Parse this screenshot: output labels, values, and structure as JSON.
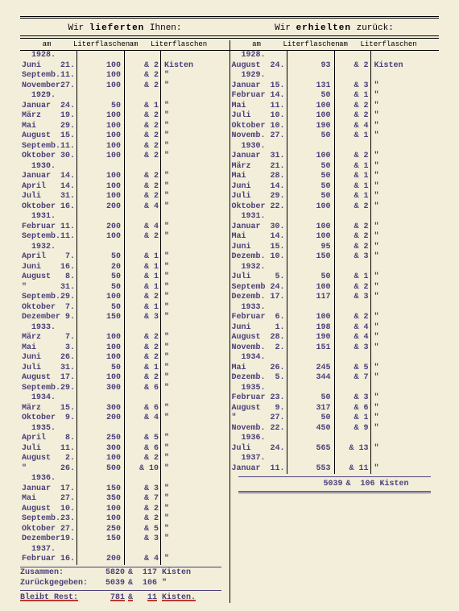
{
  "colors": {
    "paper": "#f2eed9",
    "ink": "#4a3f7a",
    "rule": "#000000",
    "red": "#c0392b"
  },
  "typography": {
    "fontFamily": "Courier New",
    "fontSize": 10
  },
  "headers": {
    "leftTitle": "Wir lieferten Ihnen:",
    "rightTitle": "Wir erhielten zurück:",
    "col_am": "am",
    "col_lf": "Literflaschen"
  },
  "left": [
    {
      "year": "1928."
    },
    {
      "m": "Juni",
      "d": "21.",
      "lf": "100",
      "am2": "& 2",
      "lf2": "Kisten"
    },
    {
      "m": "Septemb.",
      "d": "11.",
      "lf": "100",
      "am2": "& 2",
      "lf2": "\""
    },
    {
      "m": "November",
      "d": "27.",
      "lf": "100",
      "am2": "& 2",
      "lf2": "\""
    },
    {
      "year": "1929."
    },
    {
      "m": "Januar",
      "d": "24.",
      "lf": "50",
      "am2": "& 1",
      "lf2": "\""
    },
    {
      "m": "März",
      "d": "19.",
      "lf": "100",
      "am2": "& 2",
      "lf2": "\""
    },
    {
      "m": "Mai",
      "d": "29.",
      "lf": "100",
      "am2": "& 2",
      "lf2": "\""
    },
    {
      "m": "August",
      "d": "15.",
      "lf": "100",
      "am2": "& 2",
      "lf2": "\""
    },
    {
      "m": "Septemb.",
      "d": "11.",
      "lf": "100",
      "am2": "& 2",
      "lf2": "\""
    },
    {
      "m": "Oktober",
      "d": "30.",
      "lf": "100",
      "am2": "& 2",
      "lf2": "\""
    },
    {
      "year": "1930."
    },
    {
      "m": "Januar",
      "d": "14.",
      "lf": "100",
      "am2": "& 2",
      "lf2": "\""
    },
    {
      "m": "April",
      "d": "14.",
      "lf": "100",
      "am2": "& 2",
      "lf2": "\""
    },
    {
      "m": "Juli",
      "d": "31.",
      "lf": "100",
      "am2": "& 2",
      "lf2": "\""
    },
    {
      "m": "Oktober",
      "d": "16.",
      "lf": "200",
      "am2": "& 4",
      "lf2": "\""
    },
    {
      "year": "1931."
    },
    {
      "m": "Februar",
      "d": "11.",
      "lf": "200",
      "am2": "& 4",
      "lf2": "\""
    },
    {
      "m": "Septemb.",
      "d": "11.",
      "lf": "100",
      "am2": "& 2",
      "lf2": "\""
    },
    {
      "year": "1932."
    },
    {
      "m": "April",
      "d": "7.",
      "lf": "50",
      "am2": "& 1",
      "lf2": "\""
    },
    {
      "m": "Juni",
      "d": "16.",
      "lf": "20",
      "am2": "& 1",
      "lf2": "\""
    },
    {
      "m": "August",
      "d": "8.",
      "lf": "50",
      "am2": "& 1",
      "lf2": "\""
    },
    {
      "m": "\"",
      "d": "31.",
      "lf": "50",
      "am2": "& 1",
      "lf2": "\""
    },
    {
      "m": "Septemb.",
      "d": "29.",
      "lf": "100",
      "am2": "& 2",
      "lf2": "\""
    },
    {
      "m": "Oktober",
      "d": "7.",
      "lf": "50",
      "am2": "& 1",
      "lf2": "\""
    },
    {
      "m": "Dezember",
      "d": "9.",
      "lf": "150",
      "am2": "& 3",
      "lf2": "\""
    },
    {
      "year": "1933."
    },
    {
      "m": "März",
      "d": "7.",
      "lf": "100",
      "am2": "& 2",
      "lf2": "\""
    },
    {
      "m": "Mai",
      "d": "3.",
      "lf": "100",
      "am2": "& 2",
      "lf2": "\""
    },
    {
      "m": "Juni",
      "d": "26.",
      "lf": "100",
      "am2": "& 2",
      "lf2": "\""
    },
    {
      "m": "Juli",
      "d": "31.",
      "lf": "50",
      "am2": "& 1",
      "lf2": "\""
    },
    {
      "m": "August",
      "d": "17.",
      "lf": "100",
      "am2": "& 2",
      "lf2": "\""
    },
    {
      "m": "Septemb.",
      "d": "29.",
      "lf": "300",
      "am2": "& 6",
      "lf2": "\""
    },
    {
      "year": "1934."
    },
    {
      "m": "März",
      "d": "15.",
      "lf": "300",
      "am2": "& 6",
      "lf2": "\""
    },
    {
      "m": "Oktober",
      "d": "9.",
      "lf": "200",
      "am2": "& 4",
      "lf2": "\""
    },
    {
      "year": "1935."
    },
    {
      "m": "April",
      "d": "8.",
      "lf": "250",
      "am2": "& 5",
      "lf2": "\""
    },
    {
      "m": "Juli",
      "d": "11.",
      "lf": "300",
      "am2": "& 6",
      "lf2": "\""
    },
    {
      "m": "August",
      "d": "2.",
      "lf": "100",
      "am2": "& 2",
      "lf2": "\""
    },
    {
      "m": "\"",
      "d": "26.",
      "lf": "500",
      "am2": "& 10",
      "lf2": "\""
    },
    {
      "year": "1936."
    },
    {
      "m": "Januar",
      "d": "17.",
      "lf": "150",
      "am2": "& 3",
      "lf2": "\""
    },
    {
      "m": "Mai",
      "d": "27.",
      "lf": "350",
      "am2": "& 7",
      "lf2": "\""
    },
    {
      "m": "August",
      "d": "10.",
      "lf": "100",
      "am2": "& 2",
      "lf2": "\""
    },
    {
      "m": "Septemb.",
      "d": "23.",
      "lf": "100",
      "am2": "& 2",
      "lf2": "\""
    },
    {
      "m": "Oktober",
      "d": "27.",
      "lf": "250",
      "am2": "& 5",
      "lf2": "\""
    },
    {
      "m": "Dezember",
      "d": "19.",
      "lf": "150",
      "am2": "& 3",
      "lf2": "\""
    },
    {
      "year": "1937."
    },
    {
      "m": "Februar",
      "d": "16.",
      "lf": "200",
      "am2": "& 4",
      "lf2": "\""
    }
  ],
  "right": [
    {
      "year": "1928."
    },
    {
      "m": "August",
      "d": "24.",
      "lf": "93",
      "am2": "& 2",
      "lf2": "Kisten"
    },
    {
      "year": "1929."
    },
    {
      "m": "Januar",
      "d": "15.",
      "lf": "131",
      "am2": "& 3",
      "lf2": "\""
    },
    {
      "m": "Februar",
      "d": "14.",
      "lf": "50",
      "am2": "& 1",
      "lf2": "\""
    },
    {
      "m": "Mai",
      "d": "11.",
      "lf": "100",
      "am2": "& 2",
      "lf2": "\""
    },
    {
      "m": "Juli",
      "d": "10.",
      "lf": "100",
      "am2": "& 2",
      "lf2": "\""
    },
    {
      "m": "Oktober",
      "d": "10.",
      "lf": "190",
      "am2": "& 4",
      "lf2": "\""
    },
    {
      "m": "Novemb.",
      "d": "27.",
      "lf": "50",
      "am2": "& 1",
      "lf2": "\""
    },
    {
      "year": "1930."
    },
    {
      "m": "Januar",
      "d": "31.",
      "lf": "100",
      "am2": "& 2",
      "lf2": "\""
    },
    {
      "m": "März",
      "d": "21.",
      "lf": "50",
      "am2": "& 1",
      "lf2": "\""
    },
    {
      "m": "Mai",
      "d": "28.",
      "lf": "50",
      "am2": "& 1",
      "lf2": "\""
    },
    {
      "m": "Juni",
      "d": "14.",
      "lf": "50",
      "am2": "& 1",
      "lf2": "\""
    },
    {
      "m": "Juli",
      "d": "29.",
      "lf": "50",
      "am2": "& 1",
      "lf2": "\""
    },
    {
      "m": "Oktober",
      "d": "22.",
      "lf": "100",
      "am2": "& 2",
      "lf2": "\""
    },
    {
      "year": "1931."
    },
    {
      "m": "Januar",
      "d": "30.",
      "lf": "100",
      "am2": "& 2",
      "lf2": "\""
    },
    {
      "m": "Mai",
      "d": "14.",
      "lf": "100",
      "am2": "& 2",
      "lf2": "\""
    },
    {
      "m": "Juni",
      "d": "15.",
      "lf": "95",
      "am2": "& 2",
      "lf2": "\""
    },
    {
      "m": "Dezemb.",
      "d": "10.",
      "lf": "150",
      "am2": "& 3",
      "lf2": "\""
    },
    {
      "year": "1932."
    },
    {
      "m": "Juli",
      "d": "5.",
      "lf": "50",
      "am2": "& 1",
      "lf2": "\""
    },
    {
      "m": "Septemb",
      "d": "24.",
      "lf": "100",
      "am2": "& 2",
      "lf2": "\""
    },
    {
      "m": "Dezemb.",
      "d": "17.",
      "lf": "117",
      "am2": "& 3",
      "lf2": "\""
    },
    {
      "year": "1933."
    },
    {
      "m": "Februar",
      "d": "6.",
      "lf": "100",
      "am2": "& 2",
      "lf2": "\""
    },
    {
      "m": "Juni",
      "d": "1.",
      "lf": "198",
      "am2": "& 4",
      "lf2": "\""
    },
    {
      "m": "August",
      "d": "28.",
      "lf": "190",
      "am2": "& 4",
      "lf2": "\""
    },
    {
      "m": "Novemb.",
      "d": "2.",
      "lf": "151",
      "am2": "& 3",
      "lf2": "\""
    },
    {
      "year": "1934."
    },
    {
      "m": "Mai",
      "d": "26.",
      "lf": "245",
      "am2": "& 5",
      "lf2": "\""
    },
    {
      "m": "Dezemb.",
      "d": "5.",
      "lf": "344",
      "am2": "& 7",
      "lf2": "\""
    },
    {
      "year": "1935."
    },
    {
      "m": "Februar",
      "d": "23.",
      "lf": "50",
      "am2": "& 3",
      "lf2": "\""
    },
    {
      "m": "August",
      "d": "9.",
      "lf": "317",
      "am2": "& 6",
      "lf2": "\""
    },
    {
      "m": "\"",
      "d": "27.",
      "lf": "50",
      "am2": "& 1",
      "lf2": "\""
    },
    {
      "m": "Novemb.",
      "d": "22.",
      "lf": "450",
      "am2": "& 9",
      "lf2": "\""
    },
    {
      "year": "1936."
    },
    {
      "m": "Juli",
      "d": "24.",
      "lf": "565",
      "am2": "& 13",
      "lf2": "\""
    },
    {
      "year": "1937."
    },
    {
      "m": "Januar",
      "d": "11.",
      "lf": "553",
      "am2": "& 11",
      "lf2": "\""
    }
  ],
  "summary": {
    "zusammen_label": "Zusammen:",
    "zusammen_v1": "5820",
    "zusammen_amp": "&",
    "zusammen_v2": "117",
    "zusammen_k": "Kisten",
    "zurueck_label": "Zurückgegeben:",
    "zurueck_v1": "5039",
    "zurueck_amp": "&",
    "zurueck_v2": "106",
    "zurueck_k": "\"",
    "rest_label": "Bleibt Rest:",
    "rest_v1": "781",
    "rest_amp": "&",
    "rest_v2": "11",
    "rest_k": "Kisten."
  },
  "rightTotal": {
    "v1": "5039",
    "amp": "&",
    "v2": "106",
    "k": "Kisten"
  }
}
